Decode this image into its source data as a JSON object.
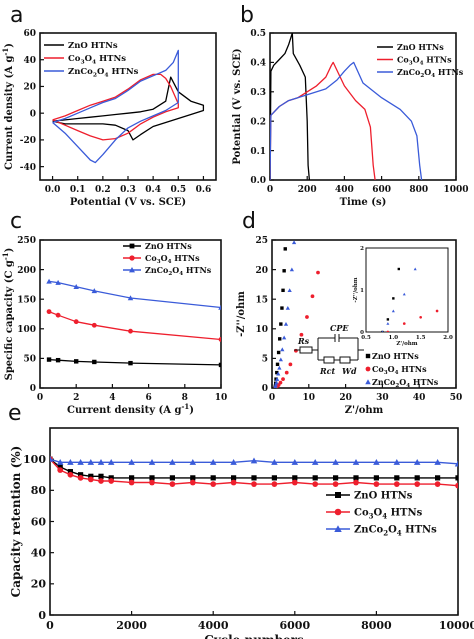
{
  "colors": {
    "zno": "#000000",
    "co3o4": "#ee1f2d",
    "znco2o4": "#3a5bd9"
  },
  "chart_data": [
    {
      "panel": "a",
      "type": "line",
      "xlabel": "Potential (V vs. SCE)",
      "ylabel": "Current density (A g-1)",
      "xlim": [
        -0.05,
        0.65
      ],
      "ylim": [
        -50,
        60
      ],
      "xticks": [
        "0.0",
        "0.1",
        "0.2",
        "0.3",
        "0.4",
        "0.5",
        "0.6"
      ],
      "yticks": [
        "-40",
        "-20",
        "0",
        "20",
        "40",
        "60"
      ],
      "legend_position": "top-left",
      "series": [
        {
          "name": "ZnO HTNs",
          "color": "zno",
          "x": [
            0.0,
            0.05,
            0.1,
            0.15,
            0.2,
            0.25,
            0.3,
            0.35,
            0.4,
            0.45,
            0.47,
            0.5,
            0.55,
            0.6,
            0.6,
            0.55,
            0.5,
            0.45,
            0.4,
            0.35,
            0.32,
            0.3,
            0.25,
            0.2,
            0.15,
            0.1,
            0.05,
            0.0
          ],
          "y": [
            -6,
            -5,
            -4,
            -3,
            -2,
            -1,
            0,
            1,
            3,
            9,
            27,
            16,
            9,
            6,
            2,
            -1,
            -4,
            -7,
            -10,
            -16,
            -20,
            -13,
            -9,
            -8,
            -8,
            -8,
            -8,
            -6
          ]
        },
        {
          "name": "Co3O4 HTNs",
          "color": "co3o4",
          "x": [
            0.0,
            0.05,
            0.1,
            0.15,
            0.2,
            0.25,
            0.3,
            0.35,
            0.4,
            0.43,
            0.45,
            0.47,
            0.5,
            0.5,
            0.45,
            0.4,
            0.35,
            0.3,
            0.25,
            0.2,
            0.15,
            0.1,
            0.05,
            0.0
          ],
          "y": [
            -5,
            -2,
            2,
            6,
            9,
            12,
            18,
            25,
            29,
            29,
            26,
            20,
            7,
            4,
            1,
            -3,
            -8,
            -15,
            -19,
            -20,
            -17,
            -13,
            -9,
            -5
          ]
        },
        {
          "name": "ZnCo2O4 HTNs",
          "color": "znco2o4",
          "x": [
            0.0,
            0.05,
            0.1,
            0.15,
            0.2,
            0.25,
            0.3,
            0.35,
            0.4,
            0.45,
            0.48,
            0.5,
            0.5,
            0.45,
            0.4,
            0.35,
            0.3,
            0.25,
            0.2,
            0.17,
            0.15,
            0.1,
            0.05,
            0.0
          ],
          "y": [
            -7,
            -4,
            0,
            4,
            8,
            11,
            17,
            24,
            28,
            32,
            38,
            47,
            8,
            2,
            -2,
            -6,
            -11,
            -20,
            -31,
            -37,
            -35,
            -25,
            -15,
            -7
          ]
        }
      ]
    },
    {
      "panel": "b",
      "type": "line",
      "xlabel": "Time (s)",
      "ylabel": "Potential (V vs. SCE)",
      "xlim": [
        0,
        1000
      ],
      "ylim": [
        0,
        0.5
      ],
      "xticks": [
        "0",
        "200",
        "400",
        "600",
        "800",
        "1000"
      ],
      "yticks": [
        "0.0",
        "0.1",
        "0.2",
        "0.3",
        "0.4",
        "0.5"
      ],
      "legend_position": "top-right",
      "series": [
        {
          "name": "ZnO HTNs",
          "color": "zno",
          "x": [
            0,
            5,
            20,
            50,
            80,
            100,
            115,
            120,
            125,
            160,
            190,
            200,
            205,
            212
          ],
          "y": [
            0,
            0.37,
            0.39,
            0.41,
            0.43,
            0.46,
            0.49,
            0.5,
            0.43,
            0.39,
            0.35,
            0.2,
            0.05,
            0
          ]
        },
        {
          "name": "Co3O4 HTNs",
          "color": "co3o4",
          "x": [
            0,
            5,
            50,
            100,
            150,
            200,
            250,
            300,
            330,
            340,
            400,
            460,
            510,
            540,
            555,
            565
          ],
          "y": [
            0,
            0.22,
            0.25,
            0.27,
            0.28,
            0.3,
            0.32,
            0.35,
            0.39,
            0.4,
            0.32,
            0.27,
            0.24,
            0.18,
            0.05,
            0
          ]
        },
        {
          "name": "ZnCo2O4 HTNs",
          "color": "znco2o4",
          "x": [
            0,
            5,
            50,
            100,
            200,
            300,
            360,
            400,
            430,
            450,
            500,
            600,
            700,
            760,
            790,
            805,
            815
          ],
          "y": [
            0,
            0.22,
            0.25,
            0.27,
            0.29,
            0.31,
            0.34,
            0.37,
            0.39,
            0.4,
            0.33,
            0.28,
            0.24,
            0.2,
            0.15,
            0.05,
            0
          ]
        }
      ]
    },
    {
      "panel": "c",
      "type": "line",
      "xlabel": "Current density (A g-1)",
      "ylabel": "Specific capacity (C g-1)",
      "xlim": [
        0,
        10
      ],
      "ylim": [
        0,
        250
      ],
      "xticks": [
        "0",
        "2",
        "4",
        "6",
        "8",
        "10"
      ],
      "yticks": [
        "0",
        "50",
        "100",
        "150",
        "200",
        "250"
      ],
      "legend_position": "top-right",
      "series": [
        {
          "name": "ZnO HTNs",
          "color": "zno",
          "marker": "square",
          "x": [
            0.5,
            1,
            2,
            3,
            5,
            10
          ],
          "y": [
            48,
            47,
            45,
            44,
            42,
            39
          ]
        },
        {
          "name": "Co3O4 HTNs",
          "color": "co3o4",
          "marker": "circle",
          "x": [
            0.5,
            1,
            2,
            3,
            5,
            10
          ],
          "y": [
            129,
            123,
            112,
            106,
            96,
            82
          ]
        },
        {
          "name": "ZnCo2O4 HTNs",
          "color": "znco2o4",
          "marker": "triangle",
          "x": [
            0.5,
            1,
            2,
            3,
            5,
            10
          ],
          "y": [
            180,
            178,
            171,
            164,
            152,
            136
          ]
        }
      ]
    },
    {
      "panel": "d",
      "type": "scatter",
      "xlabel": "Z'/ohm",
      "ylabel": "-Z''/ohm",
      "xlim": [
        0,
        50
      ],
      "ylim": [
        0,
        25
      ],
      "xticks": [
        "0",
        "10",
        "20",
        "30",
        "40",
        "50"
      ],
      "yticks": [
        "0",
        "5",
        "10",
        "15",
        "20",
        "25"
      ],
      "legend_position": "bottom-right",
      "circuit_labels": [
        "Rs",
        "CPE",
        "Rct",
        "Wd"
      ],
      "inset": {
        "xlabel": "Z'/ohm",
        "ylabel": "-Z''/ohm",
        "xlim": [
          0.5,
          2.0
        ],
        "ylim": [
          0,
          2.0
        ],
        "xticks": [
          "0.5",
          "1.0",
          "1.5",
          "2.0"
        ],
        "yticks": [
          "0",
          "1",
          "2"
        ]
      },
      "series": [
        {
          "name": "ZnO HTNs",
          "color": "zno",
          "marker": "square",
          "x": [
            0.8,
            0.9,
            1.0,
            1.1,
            1.3,
            1.5,
            1.8,
            2.1,
            2.4,
            2.7,
            3.0,
            3.3,
            3.6
          ],
          "y": [
            0,
            0.3,
            0.8,
            1.5,
            2.6,
            4.0,
            6.0,
            8.3,
            10.8,
            13.5,
            16.5,
            19.8,
            23.5
          ]
        },
        {
          "name": "Co3O4 HTNs",
          "color": "co3o4",
          "marker": "circle",
          "x": [
            0.9,
            1.2,
            1.5,
            1.8,
            2.3,
            3.0,
            4.0,
            5.0,
            6.5,
            8.0,
            9.5,
            11.0,
            12.5
          ],
          "y": [
            0,
            0.2,
            0.35,
            0.5,
            0.9,
            1.5,
            2.6,
            4.0,
            6.3,
            9.0,
            12.0,
            15.5,
            19.5
          ]
        },
        {
          "name": "ZnCo2O4 HTNs",
          "color": "znco2o4",
          "marker": "triangle",
          "x": [
            0.8,
            0.9,
            1.0,
            1.2,
            1.4,
            1.7,
            2.0,
            2.4,
            2.8,
            3.3,
            3.8,
            4.3,
            4.8,
            5.4,
            6.0
          ],
          "y": [
            0,
            0.2,
            0.5,
            0.9,
            1.5,
            2.4,
            3.4,
            4.8,
            6.5,
            8.5,
            10.8,
            13.5,
            16.5,
            20.0,
            24.6
          ]
        }
      ]
    },
    {
      "panel": "e",
      "type": "line",
      "xlabel": "Cycle numbers",
      "ylabel": "Capacity retention (%)",
      "xlim": [
        0,
        10000
      ],
      "ylim": [
        0,
        120
      ],
      "xticks": [
        "0",
        "2000",
        "4000",
        "6000",
        "8000",
        "10000"
      ],
      "yticks": [
        "0",
        "20",
        "40",
        "60",
        "80",
        "100"
      ],
      "legend_position": "right",
      "series": [
        {
          "name": "ZnO HTNs",
          "color": "zno",
          "marker": "square",
          "x": [
            0,
            250,
            500,
            750,
            1000,
            1250,
            1500,
            2000,
            2500,
            3000,
            3500,
            4000,
            4500,
            5000,
            5500,
            6000,
            6500,
            7000,
            7500,
            8000,
            8500,
            9000,
            9500,
            10000
          ],
          "y": [
            100,
            95,
            92,
            90,
            89,
            89,
            88,
            88,
            88,
            88,
            88,
            88,
            88,
            88,
            88,
            88,
            88,
            88,
            88,
            88,
            88,
            88,
            88,
            88
          ]
        },
        {
          "name": "Co3O4 HTNs",
          "color": "co3o4",
          "marker": "circle",
          "x": [
            0,
            250,
            500,
            750,
            1000,
            1250,
            1500,
            2000,
            2500,
            3000,
            3500,
            4000,
            4500,
            5000,
            5500,
            6000,
            6500,
            7000,
            7500,
            8000,
            8500,
            9000,
            9500,
            10000
          ],
          "y": [
            100,
            93,
            90,
            88,
            87,
            86,
            86,
            85,
            85,
            84,
            85,
            84,
            85,
            84,
            84,
            85,
            84,
            84,
            85,
            84,
            84,
            84,
            84,
            83
          ]
        },
        {
          "name": "ZnCo2O4 HTNs",
          "color": "znco2o4",
          "marker": "triangle",
          "x": [
            0,
            250,
            500,
            750,
            1000,
            1250,
            1500,
            2000,
            2500,
            3000,
            3500,
            4000,
            4500,
            5000,
            5500,
            6000,
            6500,
            7000,
            7500,
            8000,
            8500,
            9000,
            9500,
            10000
          ],
          "y": [
            100,
            98,
            98,
            98,
            98,
            98,
            98,
            98,
            98,
            98,
            98,
            98,
            98,
            99,
            98,
            98,
            98,
            98,
            98,
            98,
            98,
            98,
            98,
            97
          ]
        }
      ]
    }
  ]
}
